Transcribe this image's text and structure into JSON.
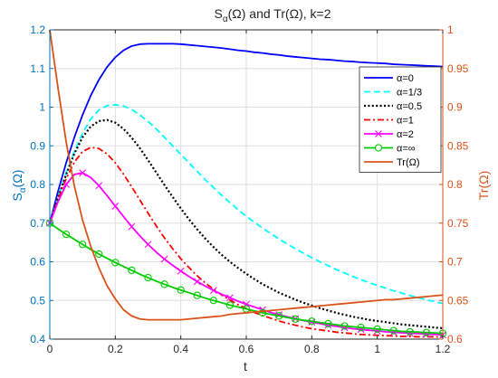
{
  "chart_data": {
    "type": "line",
    "title": "Sα(Ω) and Tr(Ω), k=2",
    "title_parts": {
      "main": "S",
      "sub": "α",
      "rest": "(Ω) and Tr(Ω), k=2"
    },
    "xlabel": "t",
    "ylabel_left": "Sα(Ω)",
    "ylabel_left_parts": {
      "main": "S",
      "sub": "α",
      "rest": "(Ω)"
    },
    "ylabel_right": "Tr(Ω)",
    "xlim": [
      0,
      1.2
    ],
    "ylim_left": [
      0.4,
      1.2
    ],
    "ylim_right": [
      0.6,
      1.0
    ],
    "grid": true,
    "legend_position": "top-right",
    "colors": {
      "left_axis": "#0072BD",
      "right_axis": "#D95319",
      "axis_dark": "#262626",
      "grid": "#dfdfdf"
    },
    "x_ticks": [
      0,
      0.2,
      0.4,
      0.6,
      0.8,
      1,
      1.2
    ],
    "x_tick_labels": [
      "0",
      "0.2",
      "0.4",
      "0.6",
      "0.8",
      "1",
      "1.2"
    ],
    "y_left_ticks": [
      0.4,
      0.5,
      0.6,
      0.7,
      0.8,
      0.9,
      1.0,
      1.1,
      1.2
    ],
    "y_left_tick_labels": [
      "0.4",
      "0.5",
      "0.6",
      "0.7",
      "0.8",
      "0.9",
      "1",
      "1.1",
      "1.2"
    ],
    "y_right_ticks": [
      0.6,
      0.65,
      0.7,
      0.75,
      0.8,
      0.85,
      0.9,
      0.95,
      1.0
    ],
    "y_right_tick_labels": [
      "0.6",
      "0.65",
      "0.7",
      "0.75",
      "0.8",
      "0.85",
      "0.9",
      "0.95",
      "1"
    ],
    "x": [
      0,
      0.025,
      0.05,
      0.075,
      0.1,
      0.125,
      0.15,
      0.175,
      0.2,
      0.225,
      0.25,
      0.275,
      0.3,
      0.325,
      0.35,
      0.375,
      0.4,
      0.425,
      0.45,
      0.475,
      0.5,
      0.525,
      0.55,
      0.575,
      0.6,
      0.625,
      0.65,
      0.675,
      0.7,
      0.725,
      0.75,
      0.775,
      0.8,
      0.825,
      0.85,
      0.875,
      0.9,
      0.925,
      0.95,
      0.975,
      1.0,
      1.025,
      1.05,
      1.075,
      1.1,
      1.125,
      1.15,
      1.175,
      1.2
    ],
    "series": [
      {
        "name": "α=0",
        "axis": "left",
        "color": "#0000FF",
        "dash": "solid",
        "marker": "none",
        "values": [
          0.7,
          0.782,
          0.856,
          0.922,
          0.98,
          1.03,
          1.071,
          1.104,
          1.129,
          1.147,
          1.158,
          1.163,
          1.164,
          1.164,
          1.164,
          1.164,
          1.163,
          1.161,
          1.159,
          1.157,
          1.155,
          1.153,
          1.15,
          1.147,
          1.145,
          1.142,
          1.14,
          1.137,
          1.135,
          1.132,
          1.13,
          1.128,
          1.126,
          1.124,
          1.123,
          1.121,
          1.119,
          1.118,
          1.116,
          1.115,
          1.114,
          1.113,
          1.111,
          1.11,
          1.109,
          1.108,
          1.107,
          1.106,
          1.105
        ]
      },
      {
        "name": "α=1/3",
        "axis": "left",
        "color": "#00FFFF",
        "dash": "dashed",
        "marker": "none",
        "values": [
          0.7,
          0.767,
          0.83,
          0.885,
          0.933,
          0.969,
          0.993,
          1.004,
          1.006,
          1.003,
          0.994,
          0.98,
          0.963,
          0.944,
          0.922,
          0.9,
          0.878,
          0.856,
          0.834,
          0.812,
          0.792,
          0.772,
          0.753,
          0.735,
          0.718,
          0.702,
          0.687,
          0.673,
          0.659,
          0.646,
          0.634,
          0.622,
          0.611,
          0.6,
          0.59,
          0.58,
          0.571,
          0.562,
          0.554,
          0.546,
          0.539,
          0.532,
          0.525,
          0.519,
          0.513,
          0.507,
          0.502,
          0.497,
          0.492
        ]
      },
      {
        "name": "α=0.5",
        "axis": "left",
        "color": "#000000",
        "dash": "dotted",
        "marker": "none",
        "values": [
          0.7,
          0.765,
          0.826,
          0.88,
          0.922,
          0.95,
          0.964,
          0.967,
          0.96,
          0.944,
          0.921,
          0.894,
          0.863,
          0.831,
          0.799,
          0.768,
          0.738,
          0.71,
          0.684,
          0.66,
          0.638,
          0.618,
          0.6,
          0.584,
          0.569,
          0.555,
          0.542,
          0.531,
          0.52,
          0.511,
          0.502,
          0.494,
          0.487,
          0.48,
          0.474,
          0.468,
          0.463,
          0.458,
          0.454,
          0.45,
          0.447,
          0.444,
          0.441,
          0.438,
          0.436,
          0.434,
          0.432,
          0.43,
          0.428
        ]
      },
      {
        "name": "α=1",
        "axis": "left",
        "color": "#FF0000",
        "dash": "dashdot",
        "marker": "none",
        "values": [
          0.7,
          0.76,
          0.815,
          0.858,
          0.885,
          0.896,
          0.893,
          0.879,
          0.856,
          0.827,
          0.794,
          0.76,
          0.726,
          0.693,
          0.662,
          0.634,
          0.608,
          0.585,
          0.564,
          0.545,
          0.529,
          0.514,
          0.501,
          0.489,
          0.479,
          0.469,
          0.461,
          0.454,
          0.447,
          0.441,
          0.436,
          0.431,
          0.427,
          0.424,
          0.421,
          0.418,
          0.416,
          0.414,
          0.412,
          0.411,
          0.41,
          0.409,
          0.408,
          0.407,
          0.407,
          0.406,
          0.406,
          0.406,
          0.405
        ]
      },
      {
        "name": "α=2",
        "axis": "left",
        "color": "#FF00FF",
        "dash": "solid",
        "marker": "x",
        "values": [
          0.7,
          0.755,
          0.8,
          0.826,
          0.83,
          0.818,
          0.797,
          0.771,
          0.744,
          0.717,
          0.691,
          0.667,
          0.645,
          0.625,
          0.607,
          0.591,
          0.576,
          0.562,
          0.549,
          0.537,
          0.526,
          0.516,
          0.507,
          0.498,
          0.49,
          0.483,
          0.476,
          0.469,
          0.463,
          0.458,
          0.453,
          0.448,
          0.444,
          0.44,
          0.436,
          0.433,
          0.43,
          0.427,
          0.425,
          0.423,
          0.421,
          0.419,
          0.418,
          0.416,
          0.415,
          0.414,
          0.413,
          0.412,
          0.411
        ]
      },
      {
        "name": "α=∞",
        "axis": "left",
        "color": "#00CC00",
        "dash": "solid",
        "marker": "o",
        "values": [
          0.7,
          0.685,
          0.671,
          0.658,
          0.645,
          0.632,
          0.62,
          0.609,
          0.598,
          0.588,
          0.578,
          0.568,
          0.559,
          0.55,
          0.542,
          0.534,
          0.527,
          0.52,
          0.513,
          0.506,
          0.5,
          0.494,
          0.488,
          0.483,
          0.478,
          0.473,
          0.468,
          0.464,
          0.46,
          0.456,
          0.452,
          0.449,
          0.446,
          0.443,
          0.44,
          0.437,
          0.434,
          0.432,
          0.43,
          0.428,
          0.426,
          0.424,
          0.422,
          0.42,
          0.419,
          0.418,
          0.417,
          0.416,
          0.415
        ]
      },
      {
        "name": "Tr(Ω)",
        "axis": "right",
        "color": "#D95319",
        "dash": "solid",
        "marker": "none",
        "values": [
          1.0,
          0.925,
          0.855,
          0.798,
          0.754,
          0.72,
          0.692,
          0.669,
          0.652,
          0.638,
          0.63,
          0.626,
          0.625,
          0.625,
          0.625,
          0.625,
          0.625,
          0.626,
          0.627,
          0.628,
          0.629,
          0.63,
          0.632,
          0.633,
          0.634,
          0.635,
          0.636,
          0.637,
          0.638,
          0.639,
          0.64,
          0.641,
          0.642,
          0.643,
          0.644,
          0.645,
          0.646,
          0.647,
          0.648,
          0.649,
          0.65,
          0.651,
          0.651,
          0.652,
          0.653,
          0.654,
          0.655,
          0.656,
          0.657
        ]
      }
    ]
  }
}
